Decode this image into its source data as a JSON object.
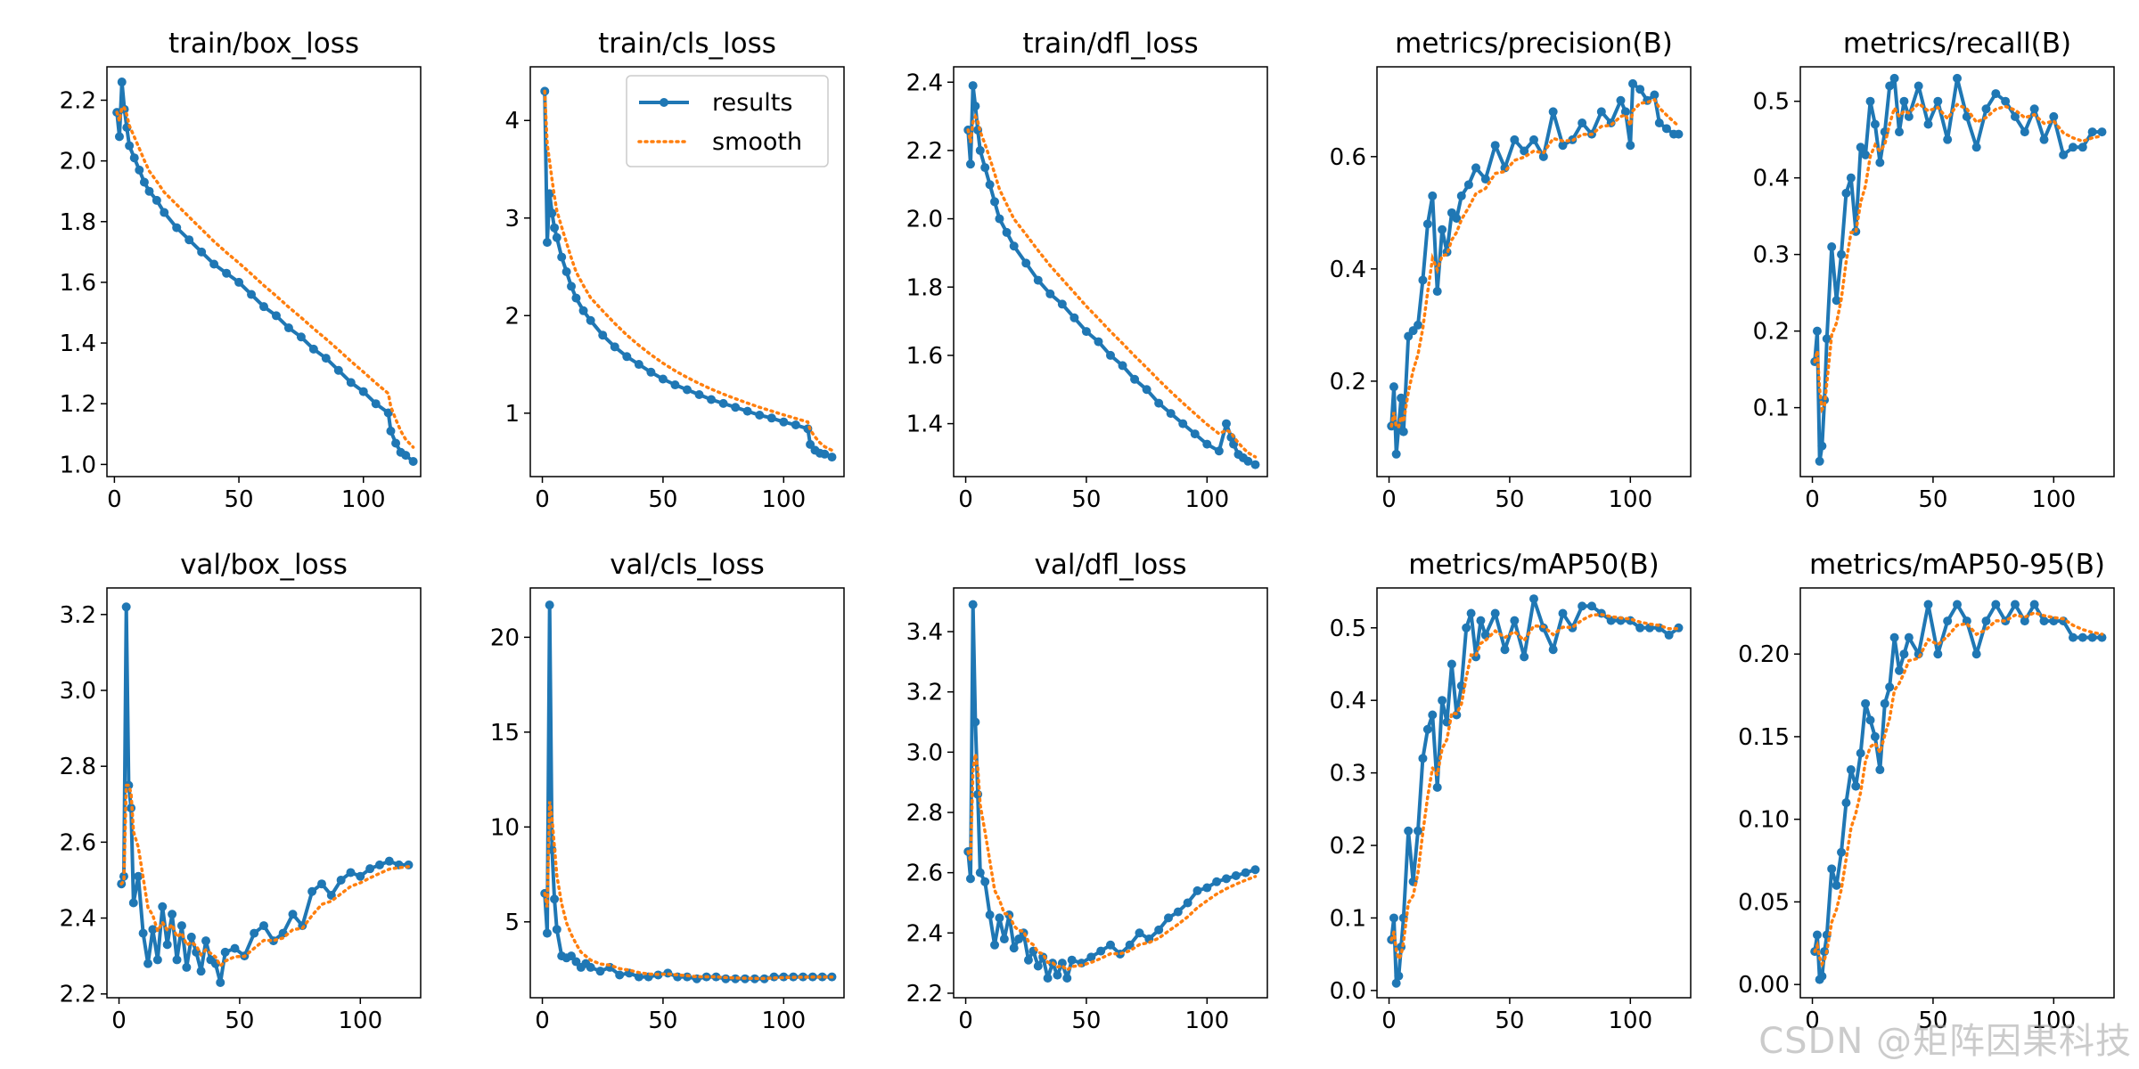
{
  "legend": {
    "results": "results",
    "smooth": "smooth"
  },
  "colors": {
    "results": "#1f77b4",
    "smooth": "#ff7f0e"
  },
  "watermark": "CSDN @矩阵因果科技",
  "chart_data": [
    {
      "type": "line",
      "title": "train/box_loss",
      "xlim": [
        -3,
        123
      ],
      "ylim": [
        0.96,
        2.31
      ],
      "xticks": [
        0,
        50,
        100
      ],
      "yticks": [
        1.0,
        1.2,
        1.4,
        1.6,
        1.8,
        2.0,
        2.2
      ],
      "ytick_labels": [
        "1.0",
        "1.2",
        "1.4",
        "1.6",
        "1.8",
        "2.0",
        "2.2"
      ],
      "x": [
        1,
        2,
        3,
        4,
        5,
        6,
        8,
        10,
        12,
        14,
        17,
        20,
        25,
        30,
        35,
        40,
        45,
        50,
        55,
        60,
        65,
        70,
        75,
        80,
        85,
        90,
        95,
        100,
        105,
        110,
        111,
        113,
        115,
        117,
        120
      ],
      "y": [
        2.16,
        2.08,
        2.26,
        2.17,
        2.11,
        2.05,
        2.01,
        1.97,
        1.93,
        1.9,
        1.87,
        1.83,
        1.78,
        1.74,
        1.7,
        1.66,
        1.63,
        1.6,
        1.56,
        1.52,
        1.49,
        1.45,
        1.42,
        1.38,
        1.35,
        1.31,
        1.27,
        1.24,
        1.2,
        1.17,
        1.11,
        1.07,
        1.04,
        1.03,
        1.01
      ]
    },
    {
      "type": "line",
      "title": "train/cls_loss",
      "xlim": [
        -5,
        125
      ],
      "ylim": [
        0.35,
        4.55
      ],
      "xticks": [
        0,
        50,
        100
      ],
      "yticks": [
        1,
        2,
        3,
        4
      ],
      "ytick_labels": [
        "1",
        "2",
        "3",
        "4"
      ],
      "x": [
        1,
        2,
        3,
        4,
        5,
        6,
        8,
        10,
        12,
        14,
        17,
        20,
        25,
        30,
        35,
        40,
        45,
        50,
        55,
        60,
        65,
        70,
        75,
        80,
        85,
        90,
        95,
        100,
        105,
        110,
        111,
        113,
        115,
        117,
        120
      ],
      "y": [
        4.3,
        2.75,
        3.25,
        3.05,
        2.9,
        2.8,
        2.6,
        2.45,
        2.3,
        2.18,
        2.05,
        1.95,
        1.8,
        1.68,
        1.58,
        1.5,
        1.42,
        1.35,
        1.29,
        1.24,
        1.19,
        1.14,
        1.1,
        1.06,
        1.02,
        0.98,
        0.95,
        0.91,
        0.88,
        0.84,
        0.68,
        0.62,
        0.59,
        0.58,
        0.55
      ]
    },
    {
      "type": "line",
      "title": "train/dfl_loss",
      "xlim": [
        -5,
        125
      ],
      "ylim": [
        1.245,
        2.445
      ],
      "xticks": [
        0,
        50,
        100
      ],
      "yticks": [
        1.4,
        1.6,
        1.8,
        2.0,
        2.2,
        2.4
      ],
      "ytick_labels": [
        "1.4",
        "1.6",
        "1.8",
        "2.0",
        "2.2",
        "2.4"
      ],
      "x": [
        1,
        2,
        3,
        4,
        5,
        6,
        8,
        10,
        12,
        14,
        17,
        20,
        25,
        30,
        35,
        40,
        45,
        50,
        55,
        60,
        65,
        70,
        75,
        80,
        85,
        90,
        95,
        100,
        105,
        108,
        110,
        111,
        113,
        115,
        117,
        120
      ],
      "y": [
        2.26,
        2.16,
        2.39,
        2.33,
        2.26,
        2.2,
        2.15,
        2.1,
        2.05,
        2.0,
        1.96,
        1.92,
        1.87,
        1.82,
        1.78,
        1.75,
        1.71,
        1.67,
        1.64,
        1.6,
        1.57,
        1.53,
        1.5,
        1.46,
        1.43,
        1.4,
        1.37,
        1.34,
        1.32,
        1.4,
        1.36,
        1.34,
        1.31,
        1.3,
        1.29,
        1.28
      ]
    },
    {
      "type": "line",
      "title": "metrics/precision(B)",
      "xlim": [
        -5,
        125
      ],
      "ylim": [
        0.03,
        0.76
      ],
      "xticks": [
        0,
        50,
        100
      ],
      "yticks": [
        0.2,
        0.4,
        0.6
      ],
      "ytick_labels": [
        "0.2",
        "0.4",
        "0.6"
      ],
      "x": [
        1,
        2,
        3,
        4,
        5,
        6,
        8,
        10,
        12,
        14,
        16,
        18,
        20,
        22,
        24,
        26,
        28,
        30,
        33,
        36,
        40,
        44,
        48,
        52,
        56,
        60,
        64,
        68,
        72,
        76,
        80,
        84,
        88,
        92,
        96,
        98,
        100,
        101,
        104,
        107,
        110,
        112,
        115,
        118,
        120
      ],
      "y": [
        0.12,
        0.19,
        0.07,
        0.12,
        0.17,
        0.11,
        0.28,
        0.29,
        0.3,
        0.38,
        0.48,
        0.53,
        0.36,
        0.47,
        0.43,
        0.5,
        0.49,
        0.53,
        0.55,
        0.58,
        0.56,
        0.62,
        0.58,
        0.63,
        0.61,
        0.63,
        0.6,
        0.68,
        0.62,
        0.63,
        0.66,
        0.64,
        0.68,
        0.66,
        0.7,
        0.68,
        0.62,
        0.73,
        0.72,
        0.7,
        0.71,
        0.66,
        0.65,
        0.64,
        0.64
      ]
    },
    {
      "type": "line",
      "title": "metrics/recall(B)",
      "xlim": [
        -5,
        125
      ],
      "ylim": [
        0.01,
        0.545
      ],
      "xticks": [
        0,
        50,
        100
      ],
      "yticks": [
        0.1,
        0.2,
        0.3,
        0.4,
        0.5
      ],
      "ytick_labels": [
        "0.1",
        "0.2",
        "0.3",
        "0.4",
        "0.5"
      ],
      "x": [
        1,
        2,
        3,
        4,
        5,
        6,
        8,
        10,
        12,
        14,
        16,
        18,
        20,
        22,
        24,
        26,
        28,
        30,
        32,
        34,
        36,
        38,
        40,
        44,
        48,
        52,
        56,
        60,
        64,
        68,
        72,
        76,
        80,
        84,
        88,
        92,
        96,
        100,
        104,
        108,
        112,
        116,
        120
      ],
      "y": [
        0.16,
        0.2,
        0.03,
        0.05,
        0.11,
        0.19,
        0.31,
        0.24,
        0.3,
        0.38,
        0.4,
        0.33,
        0.44,
        0.43,
        0.5,
        0.47,
        0.42,
        0.46,
        0.52,
        0.53,
        0.46,
        0.5,
        0.48,
        0.52,
        0.47,
        0.5,
        0.45,
        0.53,
        0.48,
        0.44,
        0.49,
        0.51,
        0.5,
        0.48,
        0.46,
        0.49,
        0.45,
        0.48,
        0.43,
        0.44,
        0.44,
        0.46,
        0.46
      ]
    },
    {
      "type": "line",
      "title": "val/box_loss",
      "xlim": [
        -5,
        125
      ],
      "ylim": [
        2.19,
        3.27
      ],
      "xticks": [
        0,
        50,
        100
      ],
      "yticks": [
        2.2,
        2.4,
        2.6,
        2.8,
        3.0,
        3.2
      ],
      "ytick_labels": [
        "2.2",
        "2.4",
        "2.6",
        "2.8",
        "3.0",
        "3.2"
      ],
      "x": [
        1,
        2,
        3,
        4,
        5,
        6,
        8,
        10,
        12,
        14,
        16,
        18,
        20,
        22,
        24,
        26,
        28,
        30,
        32,
        34,
        36,
        38,
        40,
        42,
        44,
        48,
        52,
        56,
        60,
        64,
        68,
        72,
        76,
        80,
        84,
        88,
        92,
        96,
        100,
        104,
        108,
        112,
        116,
        120
      ],
      "y": [
        2.49,
        2.51,
        3.22,
        2.75,
        2.69,
        2.44,
        2.51,
        2.36,
        2.28,
        2.37,
        2.29,
        2.43,
        2.33,
        2.41,
        2.29,
        2.38,
        2.27,
        2.35,
        2.31,
        2.26,
        2.34,
        2.29,
        2.28,
        2.23,
        2.31,
        2.32,
        2.3,
        2.36,
        2.38,
        2.34,
        2.36,
        2.41,
        2.38,
        2.47,
        2.49,
        2.46,
        2.5,
        2.52,
        2.51,
        2.53,
        2.54,
        2.55,
        2.54,
        2.54
      ]
    },
    {
      "type": "line",
      "title": "val/cls_loss",
      "xlim": [
        -5,
        125
      ],
      "ylim": [
        1.0,
        22.6
      ],
      "xticks": [
        0,
        50,
        100
      ],
      "yticks": [
        5,
        10,
        15,
        20
      ],
      "ytick_labels": [
        "5",
        "10",
        "15",
        "20"
      ],
      "x": [
        1,
        2,
        3,
        4,
        5,
        6,
        8,
        10,
        12,
        14,
        16,
        18,
        20,
        24,
        28,
        32,
        36,
        40,
        44,
        48,
        52,
        56,
        60,
        64,
        68,
        72,
        76,
        80,
        84,
        88,
        92,
        96,
        100,
        104,
        108,
        112,
        116,
        120
      ],
      "y": [
        6.5,
        4.4,
        21.7,
        8.8,
        6.2,
        4.6,
        3.2,
        3.1,
        3.2,
        2.9,
        2.6,
        2.8,
        2.6,
        2.4,
        2.6,
        2.2,
        2.3,
        2.1,
        2.1,
        2.2,
        2.3,
        2.1,
        2.1,
        2.0,
        2.1,
        2.1,
        2.0,
        2.0,
        2.0,
        2.0,
        2.0,
        2.1,
        2.1,
        2.1,
        2.1,
        2.1,
        2.1,
        2.1
      ]
    },
    {
      "type": "line",
      "title": "val/dfl_loss",
      "xlim": [
        -5,
        125
      ],
      "ylim": [
        2.185,
        3.545
      ],
      "xticks": [
        0,
        50,
        100
      ],
      "yticks": [
        2.2,
        2.4,
        2.6,
        2.8,
        3.0,
        3.2,
        3.4
      ],
      "ytick_labels": [
        "2.2",
        "2.4",
        "2.6",
        "2.8",
        "3.0",
        "3.2",
        "3.4"
      ],
      "x": [
        1,
        2,
        3,
        4,
        5,
        6,
        8,
        10,
        12,
        14,
        16,
        18,
        20,
        22,
        24,
        26,
        28,
        30,
        32,
        34,
        36,
        38,
        40,
        42,
        44,
        48,
        52,
        56,
        60,
        64,
        68,
        72,
        76,
        80,
        84,
        88,
        92,
        96,
        100,
        104,
        108,
        112,
        116,
        120
      ],
      "y": [
        2.67,
        2.58,
        3.49,
        3.1,
        2.86,
        2.6,
        2.57,
        2.46,
        2.36,
        2.45,
        2.38,
        2.46,
        2.35,
        2.38,
        2.4,
        2.31,
        2.34,
        2.29,
        2.32,
        2.25,
        2.3,
        2.26,
        2.3,
        2.25,
        2.31,
        2.3,
        2.32,
        2.34,
        2.36,
        2.33,
        2.36,
        2.4,
        2.38,
        2.41,
        2.45,
        2.47,
        2.5,
        2.54,
        2.55,
        2.57,
        2.58,
        2.59,
        2.6,
        2.61
      ]
    },
    {
      "type": "line",
      "title": "metrics/mAP50(B)",
      "xlim": [
        -5,
        125
      ],
      "ylim": [
        -0.01,
        0.555
      ],
      "xticks": [
        0,
        50,
        100
      ],
      "yticks": [
        0.0,
        0.1,
        0.2,
        0.3,
        0.4,
        0.5
      ],
      "ytick_labels": [
        "0.0",
        "0.1",
        "0.2",
        "0.3",
        "0.4",
        "0.5"
      ],
      "x": [
        1,
        2,
        3,
        4,
        5,
        6,
        8,
        10,
        12,
        14,
        16,
        18,
        20,
        22,
        24,
        26,
        28,
        30,
        32,
        34,
        36,
        38,
        40,
        44,
        48,
        52,
        56,
        60,
        64,
        68,
        72,
        76,
        80,
        84,
        88,
        92,
        96,
        100,
        104,
        108,
        112,
        116,
        120
      ],
      "y": [
        0.07,
        0.1,
        0.01,
        0.02,
        0.06,
        0.1,
        0.22,
        0.15,
        0.22,
        0.32,
        0.36,
        0.38,
        0.28,
        0.4,
        0.37,
        0.45,
        0.38,
        0.42,
        0.5,
        0.52,
        0.46,
        0.51,
        0.49,
        0.52,
        0.47,
        0.51,
        0.46,
        0.54,
        0.5,
        0.47,
        0.52,
        0.5,
        0.53,
        0.53,
        0.52,
        0.51,
        0.51,
        0.51,
        0.5,
        0.5,
        0.5,
        0.49,
        0.5
      ]
    },
    {
      "type": "line",
      "title": "metrics/mAP50-95(B)",
      "xlim": [
        -5,
        125
      ],
      "ylim": [
        -0.008,
        0.24
      ],
      "xticks": [
        0,
        50,
        100
      ],
      "yticks": [
        0.0,
        0.05,
        0.1,
        0.15,
        0.2
      ],
      "ytick_labels": [
        "0.00",
        "0.05",
        "0.10",
        "0.15",
        "0.20"
      ],
      "x": [
        1,
        2,
        3,
        4,
        5,
        6,
        8,
        10,
        12,
        14,
        16,
        18,
        20,
        22,
        24,
        26,
        28,
        30,
        32,
        34,
        36,
        38,
        40,
        44,
        48,
        52,
        56,
        60,
        64,
        68,
        72,
        76,
        80,
        84,
        88,
        92,
        96,
        100,
        104,
        108,
        112,
        116,
        120
      ],
      "y": [
        0.02,
        0.03,
        0.003,
        0.005,
        0.02,
        0.03,
        0.07,
        0.06,
        0.08,
        0.11,
        0.13,
        0.12,
        0.14,
        0.17,
        0.16,
        0.15,
        0.13,
        0.17,
        0.18,
        0.21,
        0.19,
        0.2,
        0.21,
        0.2,
        0.23,
        0.2,
        0.22,
        0.23,
        0.22,
        0.2,
        0.22,
        0.23,
        0.22,
        0.23,
        0.22,
        0.23,
        0.22,
        0.22,
        0.22,
        0.21,
        0.21,
        0.21,
        0.21
      ]
    }
  ]
}
